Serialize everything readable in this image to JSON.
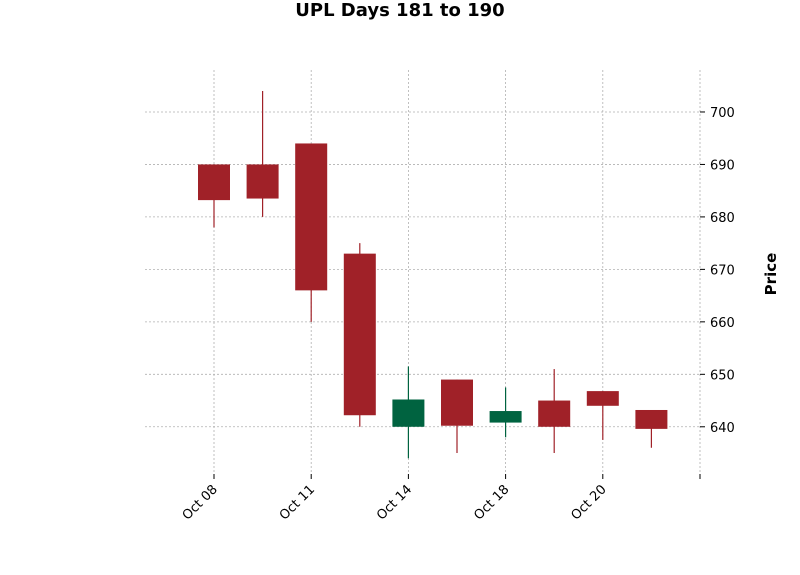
{
  "chart_data": {
    "type": "candlestick",
    "title": "UPL Days 181 to 190",
    "xlabel": "",
    "ylabel": "Price",
    "ylim": [
      631,
      708
    ],
    "grid": true,
    "y_axis_side": "right",
    "yticks": [
      640,
      650,
      660,
      670,
      680,
      690,
      700
    ],
    "xtick_labels": [
      "Oct 08",
      "Oct 11",
      "Oct 14",
      "Oct 18",
      "Oct 20",
      ""
    ],
    "colors": {
      "up": "#006340",
      "down": "#a02128",
      "grid": "#b0b0b0"
    },
    "candles": [
      {
        "open": 690.0,
        "high": 690.0,
        "low": 678.0,
        "close": 683.2
      },
      {
        "open": 690.0,
        "high": 704.0,
        "low": 680.0,
        "close": 683.5
      },
      {
        "open": 694.0,
        "high": 694.0,
        "low": 660.0,
        "close": 666.0
      },
      {
        "open": 673.0,
        "high": 675.0,
        "low": 640.0,
        "close": 642.2
      },
      {
        "open": 640.0,
        "high": 651.5,
        "low": 634.0,
        "close": 645.2
      },
      {
        "open": 649.0,
        "high": 649.0,
        "low": 635.0,
        "close": 640.2
      },
      {
        "open": 640.8,
        "high": 647.5,
        "low": 638.0,
        "close": 643.0
      },
      {
        "open": 645.0,
        "high": 651.0,
        "low": 635.0,
        "close": 640.0
      },
      {
        "open": 646.8,
        "high": 646.8,
        "low": 637.5,
        "close": 644.0
      },
      {
        "open": 643.2,
        "high": 643.2,
        "low": 636.0,
        "close": 639.6
      }
    ]
  }
}
